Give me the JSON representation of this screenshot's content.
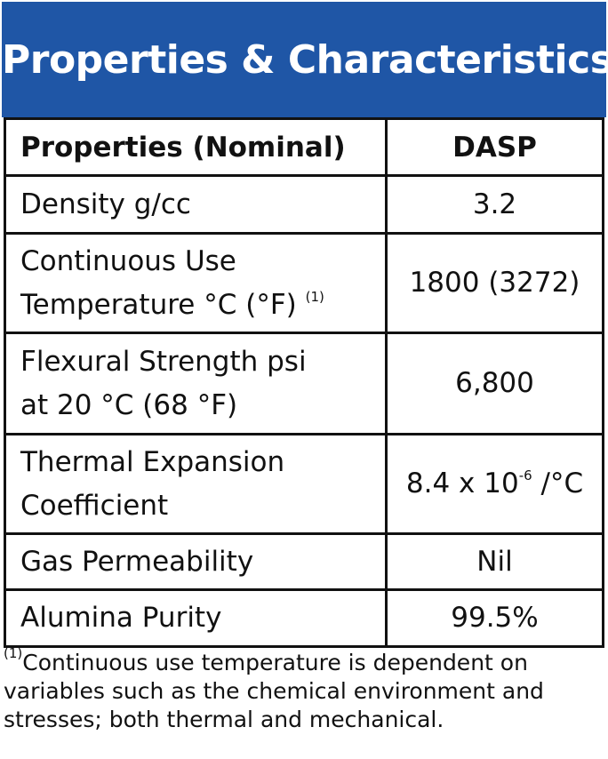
{
  "header": {
    "title": "Properties & Characteristics"
  },
  "table": {
    "columns": [
      "Properties (Nominal)",
      "DASP"
    ],
    "rows": [
      {
        "property": [
          "Density g/cc"
        ],
        "value": "3.2"
      },
      {
        "property": [
          "Continuous Use",
          "Temperature °C (°F)"
        ],
        "property_note": "(1)",
        "value": "1800 (3272)"
      },
      {
        "property": [
          "Flexural Strength psi",
          "at 20 °C (68 °F)"
        ],
        "value": "6,800"
      },
      {
        "property": [
          "Thermal Expansion",
          "Coefficient"
        ],
        "value": "8.4 x 10",
        "value_exponent": "-6",
        "value_unit": "/°C"
      },
      {
        "property": [
          "Gas Permeability"
        ],
        "value": "Nil"
      },
      {
        "property": [
          "Alumina Purity"
        ],
        "value": "99.5%"
      }
    ]
  },
  "footnote": {
    "marker": "(1)",
    "lines": [
      "Continuous use temperature is dependent on",
      "variables such as the chemical environment and",
      "stresses; both thermal and mechanical."
    ]
  }
}
